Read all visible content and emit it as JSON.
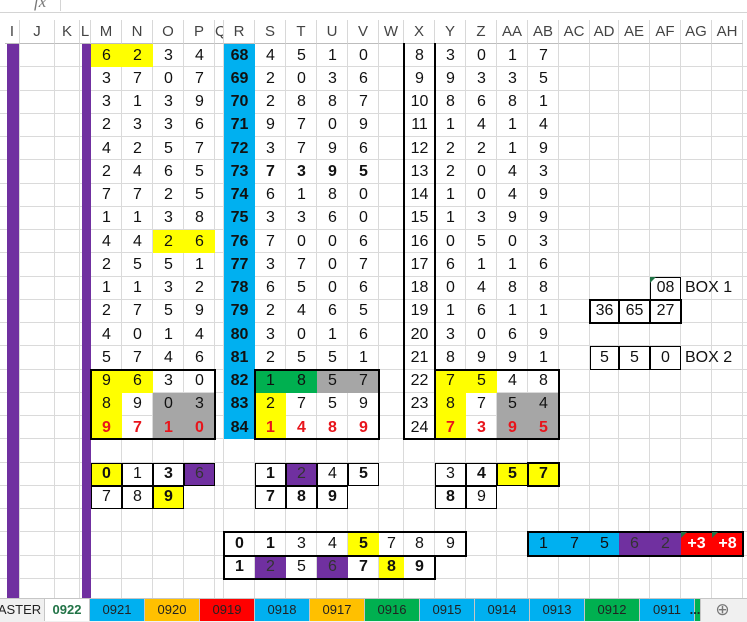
{
  "formula_bar": {
    "fx_label": "fx"
  },
  "columns": [
    "I",
    "J",
    "K",
    "L",
    "M",
    "N",
    "O",
    "P",
    "Q",
    "R",
    "S",
    "T",
    "U",
    "V",
    "W",
    "X",
    "Y",
    "Z",
    "AA",
    "AB",
    "AC",
    "AD",
    "AE",
    "AF",
    "AG",
    "AH"
  ],
  "palette": {
    "yellow": "#ffff00",
    "gray": "#a6a6a6",
    "green": "#00b050",
    "purple": "#7030a0",
    "blue": "#00b0f0",
    "redfill": "#ff0000",
    "red_text": "#e8141b",
    "sheet_bar": "#7030a0"
  },
  "main_columns": [
    "M",
    "N",
    "O",
    "P",
    "R",
    "S",
    "T",
    "U",
    "V",
    "X",
    "Y",
    "Z",
    "AA",
    "AB"
  ],
  "main_rows": [
    [
      "6",
      "2",
      "3",
      "4",
      "68",
      "4",
      "5",
      "1",
      "0",
      "8",
      "3",
      "0",
      "1",
      "7"
    ],
    [
      "3",
      "7",
      "0",
      "7",
      "69",
      "2",
      "0",
      "3",
      "6",
      "9",
      "9",
      "3",
      "3",
      "5"
    ],
    [
      "3",
      "1",
      "3",
      "9",
      "70",
      "2",
      "8",
      "8",
      "7",
      "10",
      "8",
      "6",
      "8",
      "1"
    ],
    [
      "2",
      "3",
      "3",
      "6",
      "71",
      "9",
      "7",
      "0",
      "9",
      "11",
      "1",
      "4",
      "1",
      "4"
    ],
    [
      "4",
      "2",
      "5",
      "7",
      "72",
      "3",
      "7",
      "9",
      "6",
      "12",
      "2",
      "2",
      "1",
      "9"
    ],
    [
      "2",
      "4",
      "6",
      "5",
      "73",
      "7",
      "3",
      "9",
      "5",
      "13",
      "2",
      "0",
      "4",
      "3"
    ],
    [
      "7",
      "7",
      "2",
      "5",
      "74",
      "6",
      "1",
      "8",
      "0",
      "14",
      "1",
      "0",
      "4",
      "9"
    ],
    [
      "1",
      "1",
      "3",
      "8",
      "75",
      "3",
      "3",
      "6",
      "0",
      "15",
      "1",
      "3",
      "9",
      "9"
    ],
    [
      "4",
      "4",
      "2",
      "6",
      "76",
      "7",
      "0",
      "0",
      "6",
      "16",
      "0",
      "5",
      "0",
      "3"
    ],
    [
      "2",
      "5",
      "5",
      "1",
      "77",
      "3",
      "7",
      "0",
      "7",
      "17",
      "6",
      "1",
      "1",
      "6"
    ],
    [
      "1",
      "1",
      "3",
      "2",
      "78",
      "6",
      "5",
      "0",
      "6",
      "18",
      "0",
      "4",
      "8",
      "8"
    ],
    [
      "2",
      "7",
      "5",
      "9",
      "79",
      "2",
      "4",
      "6",
      "5",
      "19",
      "1",
      "6",
      "1",
      "1"
    ],
    [
      "4",
      "0",
      "1",
      "4",
      "80",
      "3",
      "0",
      "1",
      "6",
      "20",
      "3",
      "0",
      "6",
      "9"
    ],
    [
      "5",
      "7",
      "4",
      "6",
      "81",
      "2",
      "5",
      "5",
      "1",
      "21",
      "8",
      "9",
      "9",
      "1"
    ],
    [
      "9",
      "6",
      "3",
      "0",
      "82",
      "1",
      "8",
      "5",
      "7",
      "22",
      "7",
      "5",
      "4",
      "8"
    ],
    [
      "8",
      "9",
      "0",
      "3",
      "83",
      "2",
      "7",
      "5",
      "9",
      "23",
      "8",
      "7",
      "5",
      "4"
    ],
    [
      "9",
      "7",
      "1",
      "0",
      "84",
      "1",
      "4",
      "8",
      "9",
      "24",
      "7",
      "3",
      "9",
      "5"
    ]
  ],
  "column_styles": {
    "R": "blue b"
  },
  "cell_styles": {
    "M1": "yellow",
    "N1": "yellow",
    "O9": "yellow",
    "P9": "yellow",
    "M15": "yellow",
    "N15": "yellow",
    "M16": "yellow",
    "O16": "gray",
    "P16": "gray",
    "M17": "yellow red",
    "N17": "red",
    "O17": "gray red",
    "P17": "gray red",
    "S6": "b",
    "T6": "b",
    "U6": "b",
    "V6": "b",
    "S15": "green",
    "T15": "green",
    "U15": "gray",
    "V15": "gray",
    "S16": "yellow",
    "S17": "yellow red",
    "T17": "red",
    "U17": "red",
    "V17": "red",
    "Y15": "yellow",
    "Z15": "yellow",
    "Y16": "yellow",
    "AA16": "gray",
    "AB16": "gray",
    "Y17": "yellow red",
    "Z17": "red",
    "AA17": "gray red",
    "AB17": "gray red"
  },
  "extra_cells": [
    [
      "M",
      19,
      "0",
      "yellow b box"
    ],
    [
      "N",
      19,
      "1",
      "box"
    ],
    [
      "O",
      19,
      "3",
      "b box"
    ],
    [
      "P",
      19,
      "6",
      "purple box"
    ],
    [
      "S",
      19,
      "1",
      "b box"
    ],
    [
      "T",
      19,
      "2",
      "purple box"
    ],
    [
      "U",
      19,
      "4",
      "box"
    ],
    [
      "V",
      19,
      "5",
      "b box"
    ],
    [
      "Y",
      19,
      "3",
      "box"
    ],
    [
      "Z",
      19,
      "4",
      "b box"
    ],
    [
      "AA",
      19,
      "5",
      "yellow b box"
    ],
    [
      "AB",
      19,
      "7",
      "yellow b box"
    ],
    [
      "M",
      20,
      "7",
      "box"
    ],
    [
      "N",
      20,
      "8",
      "box"
    ],
    [
      "O",
      20,
      "9",
      "yellow b box"
    ],
    [
      "S",
      20,
      "7",
      "b box"
    ],
    [
      "T",
      20,
      "8",
      "b box"
    ],
    [
      "U",
      20,
      "9",
      "b box"
    ],
    [
      "Y",
      20,
      "8",
      "b box"
    ],
    [
      "Z",
      20,
      "9",
      "box"
    ],
    [
      "R",
      22,
      "0",
      "b"
    ],
    [
      "S",
      22,
      "1",
      "b"
    ],
    [
      "T",
      22,
      "3",
      ""
    ],
    [
      "U",
      22,
      "4",
      ""
    ],
    [
      "V",
      22,
      "5",
      "yellow b"
    ],
    [
      "W",
      22,
      "7",
      ""
    ],
    [
      "X",
      22,
      "8",
      ""
    ],
    [
      "Y",
      22,
      "9",
      ""
    ],
    [
      "R",
      23,
      "1",
      "b"
    ],
    [
      "S",
      23,
      "2",
      "purple"
    ],
    [
      "T",
      23,
      "5",
      ""
    ],
    [
      "U",
      23,
      "6",
      "purple"
    ],
    [
      "V",
      23,
      "7",
      "b"
    ],
    [
      "W",
      23,
      "8",
      "yellow b"
    ],
    [
      "X",
      23,
      "9",
      "b"
    ],
    [
      "AB",
      22,
      "1",
      "blue"
    ],
    [
      "AC",
      22,
      "7",
      "blue"
    ],
    [
      "AD",
      22,
      "5",
      "blue"
    ],
    [
      "AE",
      22,
      "6",
      "purple"
    ],
    [
      "AF",
      22,
      "2",
      "purple"
    ],
    [
      "AG",
      22,
      "+3",
      "redfill white"
    ],
    [
      "AH",
      22,
      "+8",
      "redfill white"
    ],
    [
      "AF",
      11,
      "08",
      "box"
    ],
    [
      "AG",
      11,
      "BOX 1",
      "left"
    ],
    [
      "AD",
      12,
      "36",
      ""
    ],
    [
      "AE",
      12,
      "65",
      ""
    ],
    [
      "AF",
      12,
      "27",
      ""
    ],
    [
      "AD",
      14,
      "5",
      "box"
    ],
    [
      "AE",
      14,
      "5",
      "box"
    ],
    [
      "AF",
      14,
      "0",
      "box"
    ],
    [
      "AG",
      14,
      "BOX 2",
      "left"
    ]
  ],
  "sheet_tabs": [
    {
      "label": "ASTER",
      "color": ""
    },
    {
      "label": "0922",
      "color": "",
      "active": true
    },
    {
      "label": "0921",
      "color": "#00b0f0"
    },
    {
      "label": "0920",
      "color": "#ffc000"
    },
    {
      "label": "0919",
      "color": "#ff0000"
    },
    {
      "label": "0918",
      "color": "#00b0f0"
    },
    {
      "label": "0917",
      "color": "#ffc000"
    },
    {
      "label": "0916",
      "color": "#00b050"
    },
    {
      "label": "0915",
      "color": "#00b0f0"
    },
    {
      "label": "0914",
      "color": "#00b0f0"
    },
    {
      "label": "0913",
      "color": "#00b0f0"
    },
    {
      "label": "0912",
      "color": "#00b050"
    },
    {
      "label": "0911",
      "color": "#00b0f0"
    }
  ],
  "tab_overflow": "...",
  "add_sheet": "⊕"
}
